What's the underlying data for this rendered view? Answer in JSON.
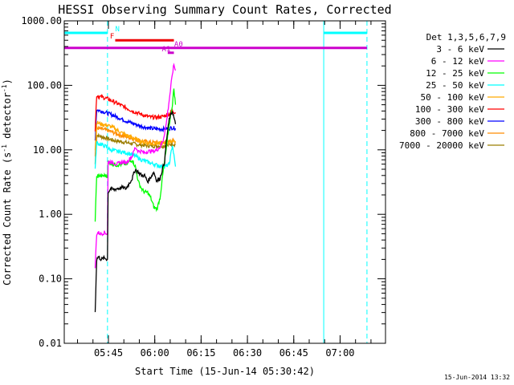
{
  "title": "HESSI Observing Summary Count Rates, Corrected",
  "stamp": "15-Jun-2014 13:32",
  "chart_data": {
    "type": "line",
    "title": "HESSI Observing Summary Count Rates, Corrected",
    "xlabel": "Start Time (15-Jun-14 05:30:42)",
    "ylabel": "Corrected Count Rate (s⁻¹ detector⁻¹)",
    "ylabel_main": "Corrected Count Rate (s",
    "ylabel_mid": " detector",
    "ylabel_end": ")",
    "ylabel_sup": "-1",
    "yscale": "log",
    "ylim": [
      0.01,
      1000
    ],
    "xlim_minutes": [
      0,
      104
    ],
    "y_ticks": [
      {
        "value": 0.01,
        "label": "0.01"
      },
      {
        "value": 0.1,
        "label": "0.10"
      },
      {
        "value": 1,
        "label": "1.00"
      },
      {
        "value": 10,
        "label": "10.00"
      },
      {
        "value": 100,
        "label": "100.00"
      },
      {
        "value": 1000,
        "label": "1000.00"
      }
    ],
    "x_ticks": [
      {
        "value": 14.3,
        "label": "05:45"
      },
      {
        "value": 29.3,
        "label": "06:00"
      },
      {
        "value": 44.3,
        "label": "06:15"
      },
      {
        "value": 59.3,
        "label": "06:30"
      },
      {
        "value": 74.3,
        "label": "06:45"
      },
      {
        "value": 89.3,
        "label": "07:00"
      }
    ],
    "legend_title": "Det 1,3,5,6,7,9",
    "series": [
      {
        "name": "3 - 6 keV",
        "color": "#000000",
        "x": [
          10,
          10.5,
          11,
          12,
          13,
          14,
          14.2,
          15,
          16,
          17,
          19,
          20,
          22,
          23,
          24,
          25,
          26,
          27,
          28,
          29,
          30,
          31,
          32,
          32.5,
          33,
          34,
          35,
          36
        ],
        "y": [
          0.03,
          0.2,
          0.22,
          0.2,
          0.21,
          0.2,
          2.2,
          2.5,
          2.4,
          2.5,
          2.6,
          2.5,
          3.6,
          5,
          4.5,
          4,
          4,
          3.2,
          3.8,
          4.5,
          3.3,
          3.6,
          5.5,
          6.5,
          13,
          30,
          40,
          25
        ]
      },
      {
        "name": "6 - 12 keV",
        "color": "#ff00ff",
        "x": [
          10,
          10.5,
          11,
          12,
          13,
          14,
          14.2,
          15,
          16,
          17,
          19,
          20,
          22,
          23,
          24,
          25,
          26,
          27,
          28,
          29,
          30,
          31,
          32,
          33,
          34,
          35,
          35.5,
          36
        ],
        "y": [
          0.15,
          0.5,
          0.52,
          0.5,
          0.52,
          0.5,
          6.5,
          6.5,
          6.2,
          6,
          6.5,
          6.3,
          8,
          11,
          9.5,
          9.5,
          9,
          9.5,
          9.5,
          9.5,
          10,
          11,
          14,
          25,
          60,
          150,
          210,
          170
        ]
      },
      {
        "name": "12 - 25 keV",
        "color": "#00ff00",
        "x": [
          10,
          10.5,
          11,
          12,
          13,
          14,
          14.2,
          15,
          16,
          17,
          19,
          20,
          22,
          23,
          24,
          25,
          26,
          27,
          28,
          29,
          30,
          31,
          32,
          33,
          34,
          35,
          35.5,
          36
        ],
        "y": [
          0.8,
          3.8,
          4,
          3.9,
          4,
          3.9,
          6.5,
          6.2,
          6,
          5.8,
          6,
          6,
          7,
          5.5,
          3.2,
          2.5,
          2.2,
          2.2,
          1.8,
          1.3,
          1.2,
          1.8,
          4.5,
          10,
          25,
          50,
          90,
          50
        ]
      },
      {
        "name": "25 - 50 keV",
        "color": "#00ffff",
        "x": [
          10,
          10.5,
          11,
          12,
          13,
          14,
          14.2,
          15,
          16,
          17,
          19,
          20,
          22,
          23,
          24,
          25,
          26,
          27,
          28,
          29,
          30,
          31,
          32,
          33,
          34,
          35,
          36
        ],
        "y": [
          5,
          13,
          12.5,
          12,
          11.5,
          11,
          10.5,
          10,
          9.8,
          9.5,
          9.2,
          9,
          8.5,
          8,
          7.5,
          7,
          6.8,
          6.5,
          6.2,
          6,
          5.8,
          5.6,
          5.5,
          5.6,
          6,
          12,
          5.5
        ]
      },
      {
        "name": "50 - 100 keV",
        "color": "#ffaa00",
        "x": [
          10,
          10.5,
          11,
          12,
          14,
          16,
          18,
          20,
          22,
          24,
          26,
          28,
          30,
          32,
          34,
          35,
          36
        ],
        "y": [
          10,
          27,
          26,
          25,
          24,
          22,
          19,
          17,
          15.5,
          14,
          13,
          12.5,
          12.5,
          12.5,
          13,
          14,
          13.5
        ]
      },
      {
        "name": "100 - 300 keV",
        "color": "#ff0000",
        "x": [
          10,
          10.5,
          11,
          12,
          14,
          16,
          18,
          20,
          22,
          24,
          26,
          28,
          30,
          32,
          34,
          35,
          36
        ],
        "y": [
          20,
          70,
          68,
          66,
          62,
          56,
          50,
          45,
          40,
          37,
          34,
          32,
          32,
          33,
          36,
          40,
          38
        ]
      },
      {
        "name": "300 - 800 keV",
        "color": "#0000ff",
        "x": [
          10,
          10.5,
          11,
          12,
          14,
          16,
          18,
          20,
          22,
          24,
          26,
          28,
          30,
          32,
          34,
          35,
          36
        ],
        "y": [
          14,
          42,
          41,
          40,
          37,
          34,
          31,
          28,
          26,
          24,
          22.5,
          21.5,
          21,
          21,
          21.5,
          22,
          21.5
        ]
      },
      {
        "name": "800 - 7000 keV",
        "color": "#ff8c00",
        "x": [
          10,
          10.5,
          11,
          12,
          14,
          16,
          18,
          20,
          22,
          24,
          26,
          28,
          30,
          32,
          34,
          35,
          36
        ],
        "y": [
          8,
          22,
          21.5,
          21,
          20,
          18.5,
          17,
          16,
          15,
          14,
          13.5,
          13,
          13,
          13,
          13.5,
          14,
          13.5
        ]
      },
      {
        "name": "7000 - 20000 keV",
        "color": "#9b7d00",
        "x": [
          10,
          10.5,
          11,
          12,
          14,
          16,
          18,
          20,
          22,
          24,
          26,
          28,
          30,
          32,
          34,
          35,
          36
        ],
        "y": [
          6,
          17,
          16.5,
          16,
          15,
          14,
          13.5,
          13,
          12.5,
          12,
          11.8,
          11.5,
          11.5,
          11.5,
          12,
          12.5,
          12
        ]
      }
    ],
    "flags": [
      {
        "name": "N",
        "color": "#00ffff",
        "segments": [
          [
            0,
            14
          ],
          [
            84,
            98
          ]
        ],
        "level": 650,
        "label": "N",
        "label_x": 16.5
      },
      {
        "name": "F",
        "color": "#ee0000",
        "segments": [
          [
            16.5,
            35.5
          ]
        ],
        "level": 500,
        "label": "F",
        "label_x": 14.8
      },
      {
        "name": "A0",
        "color": "#cc00cc",
        "segments": [
          [
            0,
            98
          ]
        ],
        "level": 380,
        "label": "A0",
        "label_x": 35.6
      },
      {
        "name": "A1",
        "color": "#cc00cc",
        "segments": [
          [
            33.5,
            35.5
          ]
        ],
        "level": 320,
        "label": "A1",
        "label_x": 31.6
      }
    ],
    "vlines": [
      {
        "x": 14,
        "color": "#00ffff",
        "style": "dashed"
      },
      {
        "x": 84,
        "color": "#00ffff",
        "style": "solid"
      },
      {
        "x": 98,
        "color": "#00ffff",
        "style": "dashed"
      }
    ]
  }
}
